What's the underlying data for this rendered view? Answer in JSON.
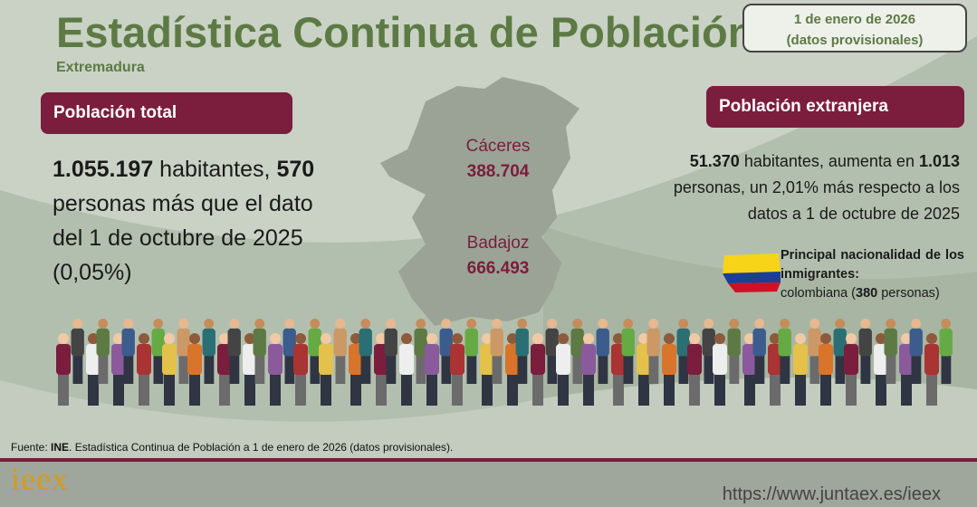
{
  "header": {
    "title": "Estadística Continua de Población",
    "subtitle": "Extremadura",
    "date": "1 de enero de 2026",
    "date_note": "(datos provisionales)"
  },
  "total": {
    "label": "Población total",
    "text": [
      "1.055.197",
      " habitantes, ",
      "570",
      " personas más que el dato del 1 de octubre de 2025 (0,05%)"
    ]
  },
  "map": {
    "provinces": [
      {
        "name": "Cáceres",
        "value": "388.704"
      },
      {
        "name": "Badajoz",
        "value": "666.493"
      }
    ]
  },
  "foreign": {
    "label": "Población extranjera",
    "text": [
      "51.370",
      " habitantes, aumenta en ",
      "1.013",
      " personas, un 2,01% más respecto a los datos a 1 de octubre de 2025"
    ],
    "nationality": {
      "heading": "Principal nacionalidad de los inmigrantes:",
      "text": [
        "colombiana (",
        "380",
        " personas)"
      ]
    }
  },
  "footer": {
    "source": [
      "Fuente: ",
      "INE",
      ". Estadística  Continua de Población a 1 de enero de 2026 (datos provisionales)."
    ],
    "logo": "ieex",
    "url": "https://www.juntaex.es/ieex"
  }
}
